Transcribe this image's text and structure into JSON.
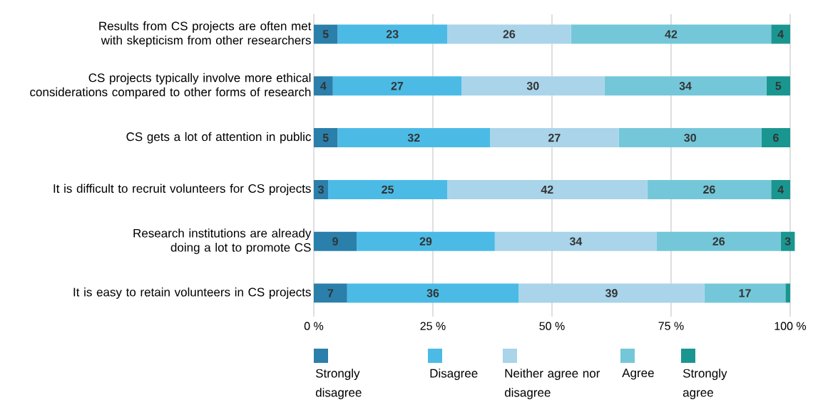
{
  "chart_data": {
    "type": "bar",
    "orientation": "horizontal",
    "stacked": true,
    "categories": [
      "Results from CS projects are often met with skepticism from other researchers",
      "CS projects typically involve more ethical considerations compared to other forms of research",
      "CS gets a lot of attention in public",
      "It is difficult to recruit volunteers for CS projects",
      "Research institutions are already doing a lot to promote CS",
      "It is easy to retain volunteers in CS projects"
    ],
    "series": [
      {
        "name": "Strongly disagree",
        "color": "#2a7fab",
        "values": [
          5,
          4,
          5,
          3,
          9,
          7
        ],
        "value_labels": [
          "5",
          "4",
          "5",
          "3",
          "9",
          "7"
        ]
      },
      {
        "name": "Disagree",
        "color": "#4bbbe6",
        "values": [
          23,
          27,
          32,
          25,
          29,
          36
        ],
        "value_labels": [
          "23",
          "27",
          "32",
          "25",
          "29",
          "36"
        ]
      },
      {
        "name": "Neither agree nor disagree",
        "color": "#a9d4ea",
        "values": [
          26,
          30,
          27,
          42,
          34,
          39
        ],
        "value_labels": [
          "26",
          "30",
          "27",
          "42",
          "34",
          "39"
        ]
      },
      {
        "name": "Agree",
        "color": "#74c7d9",
        "values": [
          42,
          34,
          30,
          26,
          26,
          17
        ],
        "value_labels": [
          "42",
          "34",
          "30",
          "26",
          "26",
          "17"
        ]
      },
      {
        "name": "Strongly agree",
        "color": "#1a9690",
        "values": [
          4,
          5,
          6,
          4,
          3,
          1
        ],
        "value_labels": [
          "4",
          "5",
          "6",
          "4",
          "3",
          null
        ]
      }
    ],
    "xlim": [
      0,
      101
    ],
    "xticks": [
      {
        "value": 0,
        "label": "0 %"
      },
      {
        "value": 25,
        "label": "25 %"
      },
      {
        "value": 50,
        "label": "50 %"
      },
      {
        "value": 75,
        "label": "75 %"
      },
      {
        "value": 100,
        "label": "100 %"
      }
    ],
    "grid": "x",
    "legend": "bottom"
  }
}
